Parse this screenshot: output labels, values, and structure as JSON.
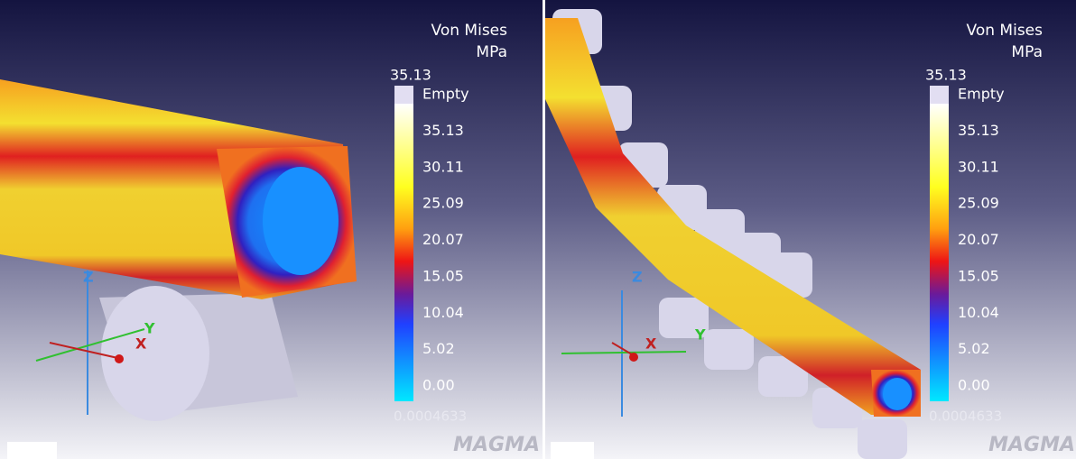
{
  "panels": [
    {
      "legend": {
        "title": "Von Mises",
        "unit": "MPa",
        "max_label": "35.13",
        "labels": [
          "Empty",
          "35.13",
          "30.11",
          "25.09",
          "20.07",
          "15.05",
          "10.04",
          "5.02",
          "0.00"
        ],
        "min_label": "0.0004633"
      },
      "axes": {
        "x": "X",
        "y": "Y",
        "z": "Z"
      },
      "logo": "MAGMA"
    },
    {
      "legend": {
        "title": "Von Mises",
        "unit": "MPa",
        "max_label": "35.13",
        "labels": [
          "Empty",
          "35.13",
          "30.11",
          "25.09",
          "20.07",
          "15.05",
          "10.04",
          "5.02",
          "0.00"
        ],
        "min_label": "0.0004633"
      },
      "axes": {
        "x": "X",
        "y": "Y",
        "z": "Z"
      },
      "logo": "MAGMA"
    }
  ]
}
